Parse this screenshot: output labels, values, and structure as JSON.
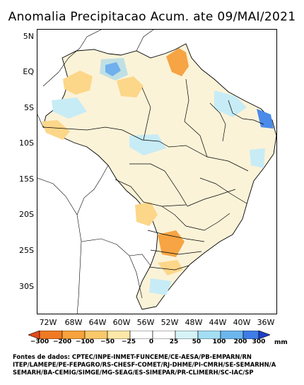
{
  "title": "Anomalia Precipitacao Acum. ate 09/MAI/2021",
  "lat_labels": [
    "5N",
    "EQ",
    "5S",
    "10S",
    "15S",
    "20S",
    "25S",
    "30S"
  ],
  "lon_labels": [
    "72W",
    "68W",
    "64W",
    "60W",
    "56W",
    "52W",
    "48W",
    "44W",
    "40W",
    "36W"
  ],
  "colorbar": {
    "ticks": [
      "−300",
      "−200",
      "−100",
      "−50",
      "−25",
      "0",
      "25",
      "50",
      "100",
      "200",
      "300"
    ],
    "unit": "mm",
    "colors": [
      "#e34a1a",
      "#f07a22",
      "#f7a23c",
      "#fbc86a",
      "#fde8a8",
      "#ffffff",
      "#d6f3f7",
      "#a4def3",
      "#6cb6ee",
      "#3e7de6",
      "#1f3fc8"
    ]
  },
  "sources": {
    "line1": "Fontes de dados: CPTEC/INPE-INMET-FUNCEME/CE-AESA/PB-EMPARN/RN",
    "line2": "ITEP/LAMEPE/PE-FEPAGRO/RS-CHESF-COMET/RJ-DHME/PI-CMRH/SE-SEMARHN/A",
    "line3": "SEMARH/BA-CEMIG/SIMGE/MG-SEAG/ES-SIMEPAR/PR-CLIMERH/SC-IAC/SP"
  },
  "map_colors": {
    "neutral": "#fbf3d8",
    "light_orange": "#fcd689",
    "orange": "#f6a444",
    "light_blue": "#c7ecf6",
    "mid_blue": "#8ed0f0",
    "blue": "#4a8ae8",
    "white": "#ffffff"
  }
}
